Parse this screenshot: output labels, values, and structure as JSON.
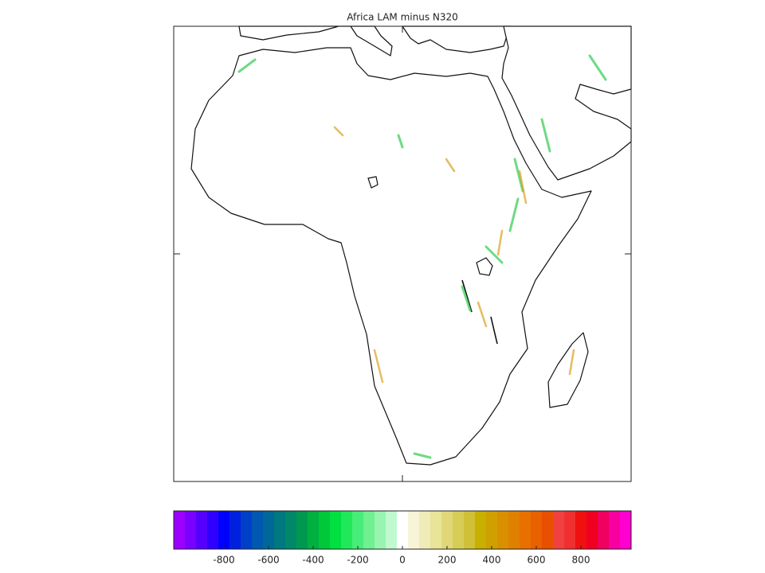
{
  "title": "Africa LAM minus N320",
  "colorbar": {
    "lim": [
      -1025,
      1025
    ],
    "ticks": [
      -800,
      -600,
      -400,
      -200,
      0,
      200,
      400,
      600,
      800
    ],
    "colors": [
      "#9b00ff",
      "#7a00ff",
      "#5500ff",
      "#3000ff",
      "#0000ff",
      "#0020e0",
      "#0040c8",
      "#0058b0",
      "#006898",
      "#007880",
      "#008868",
      "#009850",
      "#00b040",
      "#00c838",
      "#00e040",
      "#20e858",
      "#48ec78",
      "#70f090",
      "#98f4b0",
      "#c0f8d0",
      "#ffffff",
      "#f8f4d8",
      "#f0ecb8",
      "#e8e498",
      "#e0d878",
      "#d8cc58",
      "#d0c038",
      "#c8b000",
      "#d0a000",
      "#d89000",
      "#e08000",
      "#e87000",
      "#e86000",
      "#e85000",
      "#f04040",
      "#f03030",
      "#f01010",
      "#f00020",
      "#f00060",
      "#f800a0",
      "#ff00d0"
    ]
  }
}
